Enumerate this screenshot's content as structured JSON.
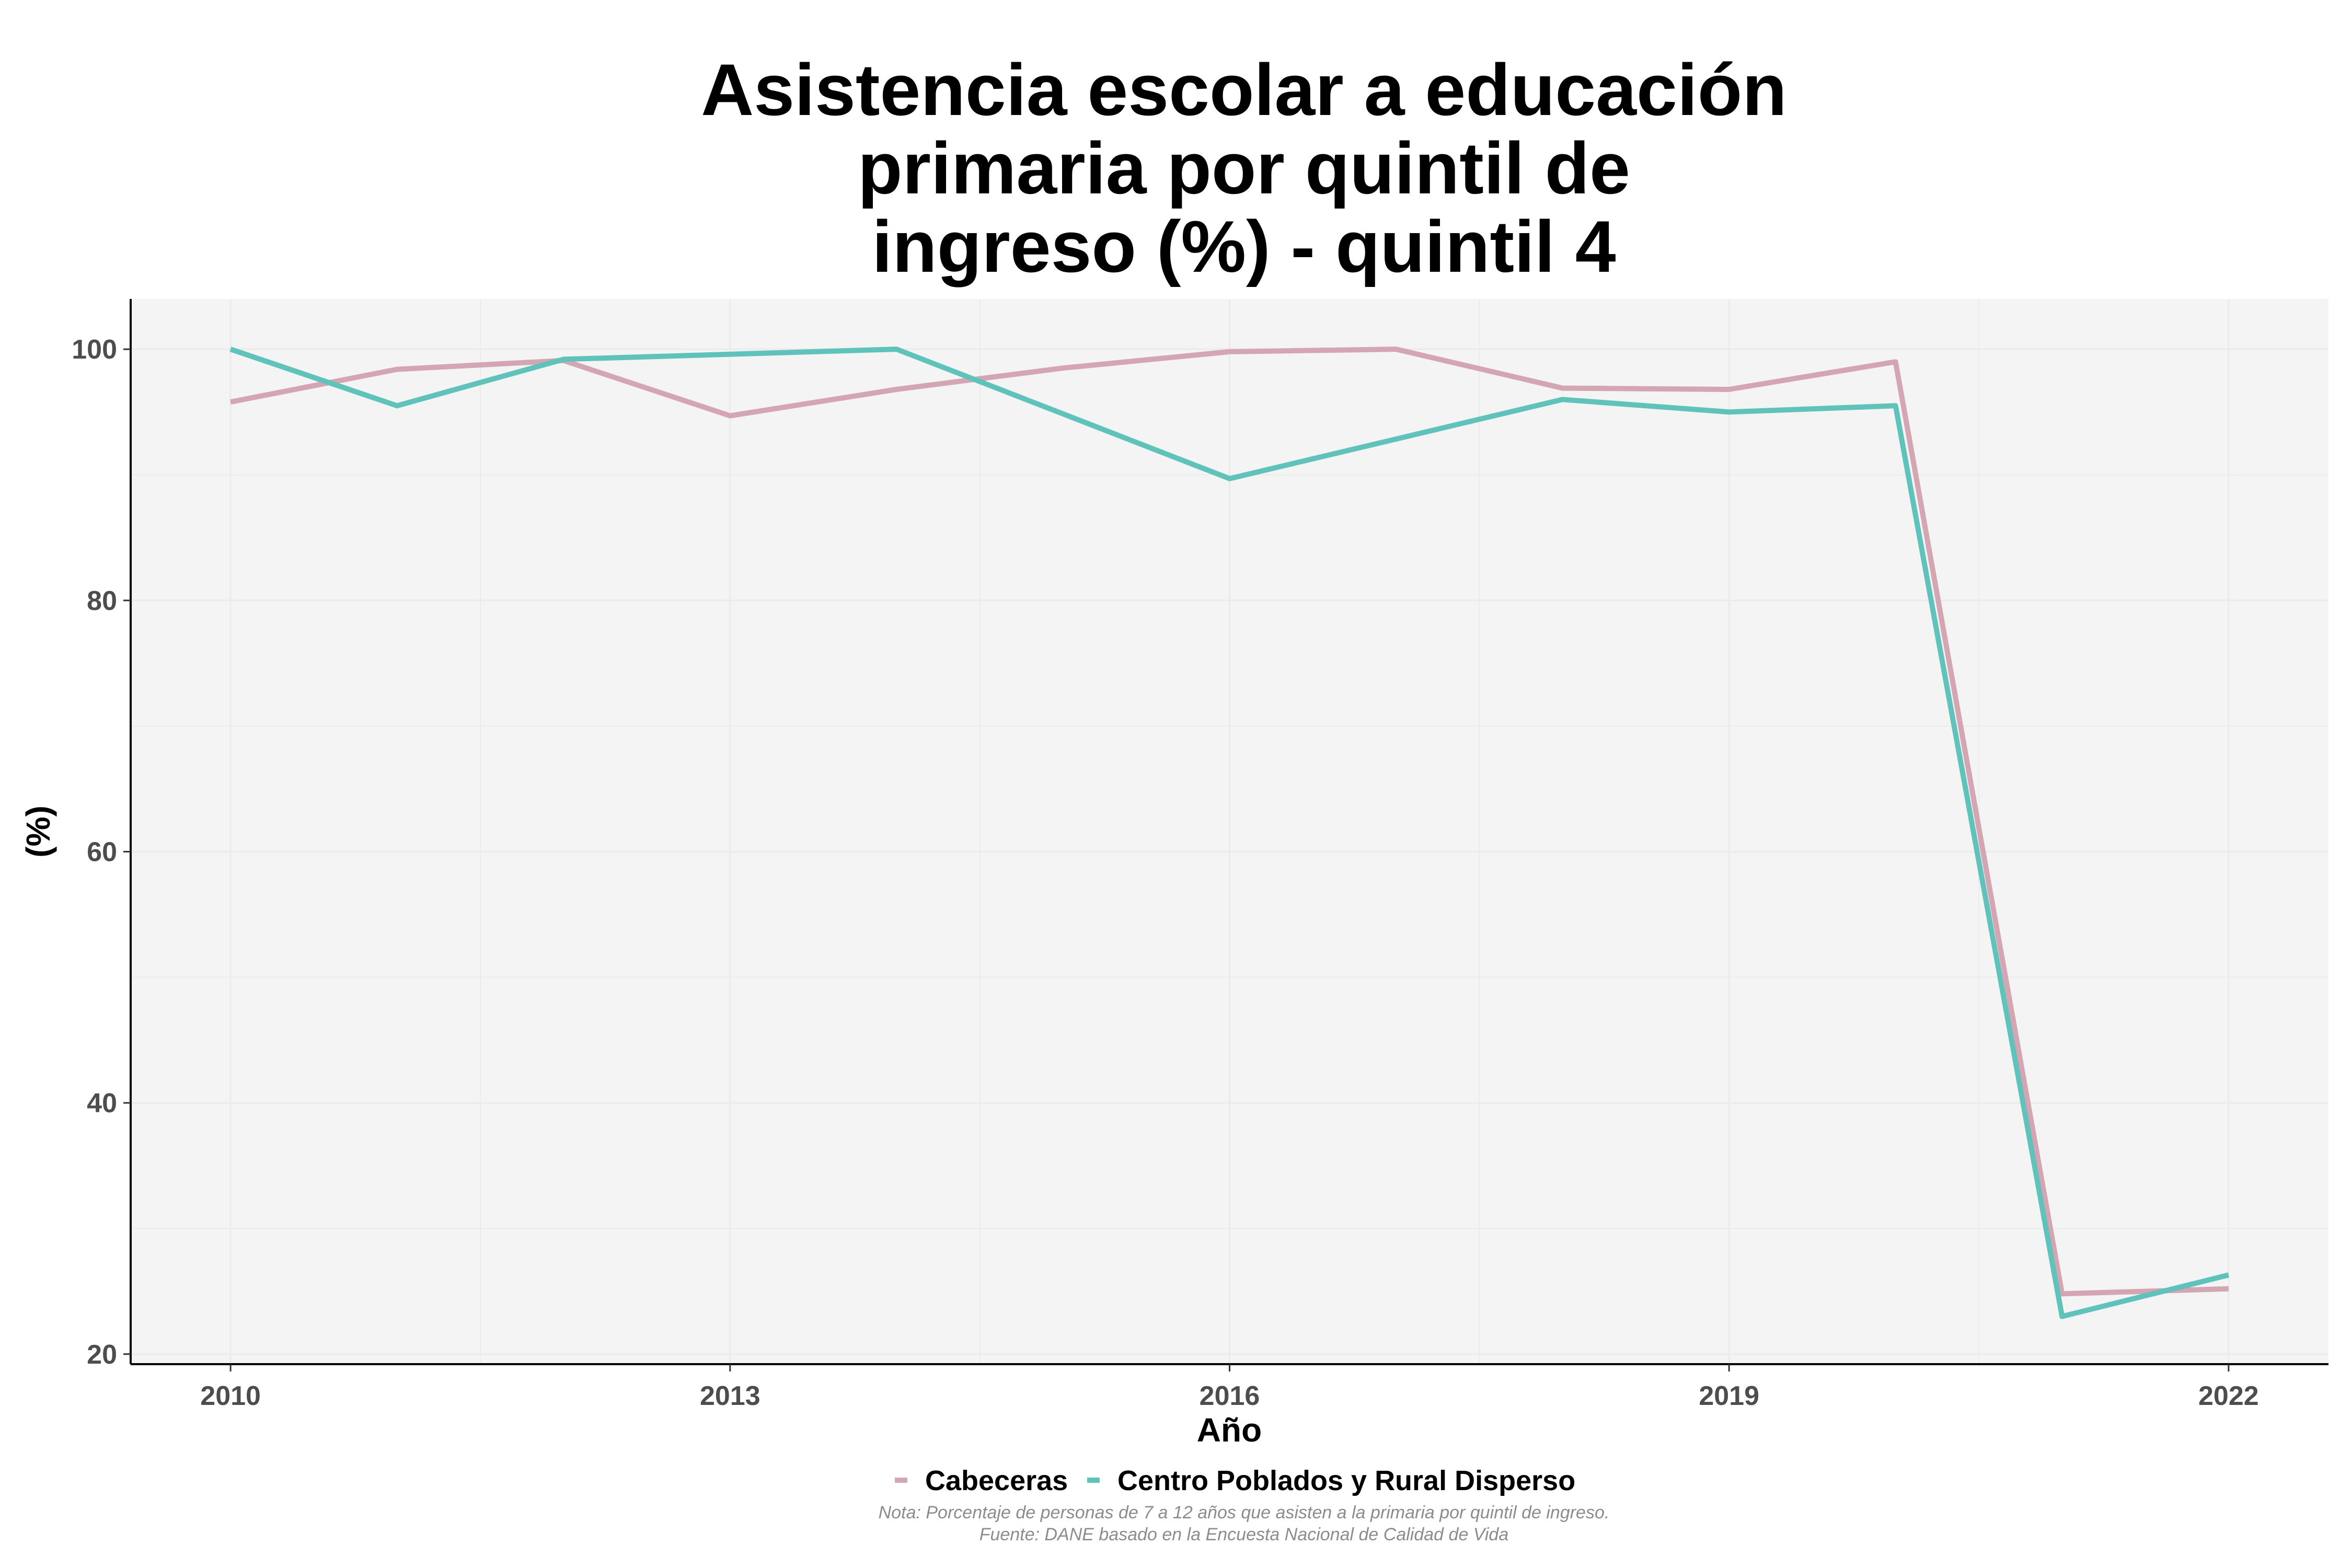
{
  "chart_data": {
    "type": "line",
    "title_lines": [
      "Asistencia escolar a educación",
      "primaria por quintil de",
      "ingreso (%) - quintil 4"
    ],
    "xlabel": "Año",
    "ylabel": "(%)",
    "x": [
      2010,
      2011,
      2012,
      2013,
      2014,
      2015,
      2016,
      2017,
      2018,
      2019,
      2020,
      2021,
      2022
    ],
    "xlim": [
      2009.4,
      2022.6
    ],
    "ylim": [
      19.2,
      104
    ],
    "x_ticks": [
      2010,
      2013,
      2016,
      2019,
      2022
    ],
    "x_tick_labels": [
      "2010",
      "2013",
      "2016",
      "2019",
      "2022"
    ],
    "y_ticks": [
      20,
      40,
      60,
      80,
      100
    ],
    "y_tick_labels": [
      "20",
      "40",
      "60",
      "80",
      "100"
    ],
    "grid": true,
    "legend_position": "bottom",
    "series": [
      {
        "name": "Cabeceras",
        "color": "#d4a5b2",
        "x": [
          2010,
          2011,
          2012,
          2013,
          2014,
          2015,
          2016,
          2017,
          2018,
          2019,
          2020,
          2021,
          2022
        ],
        "values": [
          95.8,
          98.4,
          99.1,
          94.7,
          96.8,
          98.5,
          99.8,
          100.0,
          96.9,
          96.8,
          99.0,
          24.8,
          25.2
        ]
      },
      {
        "name": "Centro Poblados y Rural Disperso",
        "color": "#5fc2bb",
        "x": [
          2010,
          2011,
          2012,
          2014,
          2016,
          2018,
          2019,
          2020,
          2021,
          2022
        ],
        "values": [
          100.0,
          95.5,
          99.2,
          100.0,
          89.7,
          96.0,
          95.0,
          95.5,
          23.0,
          26.3
        ]
      }
    ],
    "caption_lines": [
      "Nota: Porcentaje de personas de 7 a 12 años que asisten a la primaria por quintil de ingreso.",
      "Fuente: DANE basado en la Encuesta Nacional de Calidad de Vida"
    ],
    "panel_background": "#f4f4f4",
    "grid_color": "#ebebeb"
  }
}
